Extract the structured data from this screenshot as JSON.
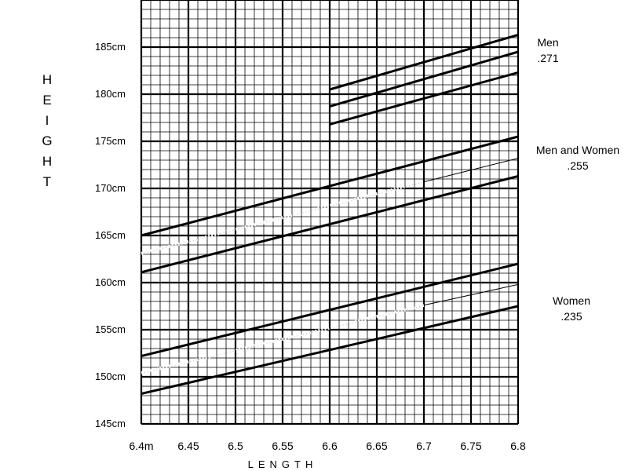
{
  "chart_data": {
    "type": "line",
    "xlabel": "LENGTH",
    "ylabel": [
      "H",
      "E",
      "I",
      "G",
      "H",
      "T"
    ],
    "xlim": [
      6.4,
      6.8
    ],
    "ylim": [
      145,
      185
    ],
    "x_ticks": [
      {
        "value": 6.4,
        "label": "6.4m"
      },
      {
        "value": 6.45,
        "label": "6.45"
      },
      {
        "value": 6.5,
        "label": "6.5"
      },
      {
        "value": 6.55,
        "label": "6.55"
      },
      {
        "value": 6.6,
        "label": "6.6"
      },
      {
        "value": 6.65,
        "label": "6.65"
      },
      {
        "value": 6.7,
        "label": "6.7"
      },
      {
        "value": 6.75,
        "label": "6.75"
      },
      {
        "value": 6.8,
        "label": "6.8"
      }
    ],
    "y_ticks": [
      {
        "value": 145,
        "label": "145cm"
      },
      {
        "value": 150,
        "label": "150cm"
      },
      {
        "value": 155,
        "label": "155cm"
      },
      {
        "value": 160,
        "label": "160cm"
      },
      {
        "value": 165,
        "label": "165cm"
      },
      {
        "value": 170,
        "label": "170cm"
      },
      {
        "value": 175,
        "label": "175cm"
      },
      {
        "value": 180,
        "label": "180cm"
      },
      {
        "value": 185,
        "label": "185cm"
      }
    ],
    "grid": {
      "major": true,
      "minor_per_major": 5
    },
    "groups": [
      {
        "label": "Men",
        "coefficient": ".271",
        "lines": [
          {
            "role": "upper",
            "style": "bold",
            "x": [
              6.6,
              6.8
            ],
            "y": [
              180.5,
              186.3
            ]
          },
          {
            "role": "middle",
            "style": "bold",
            "x": [
              6.6,
              6.8
            ],
            "y": [
              178.7,
              184.5
            ]
          },
          {
            "role": "lower",
            "style": "bold",
            "x": [
              6.6,
              6.8
            ],
            "y": [
              176.8,
              182.3
            ]
          }
        ]
      },
      {
        "label": "Men and Women",
        "coefficient": ".255",
        "lines": [
          {
            "role": "upper",
            "style": "bold",
            "x": [
              6.4,
              6.8
            ],
            "y": [
              165.0,
              175.5
            ]
          },
          {
            "role": "middle",
            "style": "dotted",
            "x": [
              6.4,
              6.7
            ],
            "y": [
              163.1,
              170.7
            ]
          },
          {
            "role": "middle",
            "style": "thin",
            "x": [
              6.7,
              6.8
            ],
            "y": [
              170.7,
              173.2
            ]
          },
          {
            "role": "lower",
            "style": "bold",
            "x": [
              6.4,
              6.8
            ],
            "y": [
              161.1,
              171.3
            ]
          }
        ]
      },
      {
        "label": "Women",
        "coefficient": ".235",
        "lines": [
          {
            "role": "upper",
            "style": "bold",
            "x": [
              6.4,
              6.8
            ],
            "y": [
              152.2,
              162.0
            ]
          },
          {
            "role": "middle",
            "style": "dotted",
            "x": [
              6.4,
              6.7
            ],
            "y": [
              150.4,
              157.6
            ]
          },
          {
            "role": "middle",
            "style": "thin",
            "x": [
              6.7,
              6.8
            ],
            "y": [
              157.6,
              159.8
            ]
          },
          {
            "role": "lower",
            "style": "bold",
            "x": [
              6.4,
              6.8
            ],
            "y": [
              148.2,
              157.5
            ]
          }
        ]
      }
    ]
  }
}
